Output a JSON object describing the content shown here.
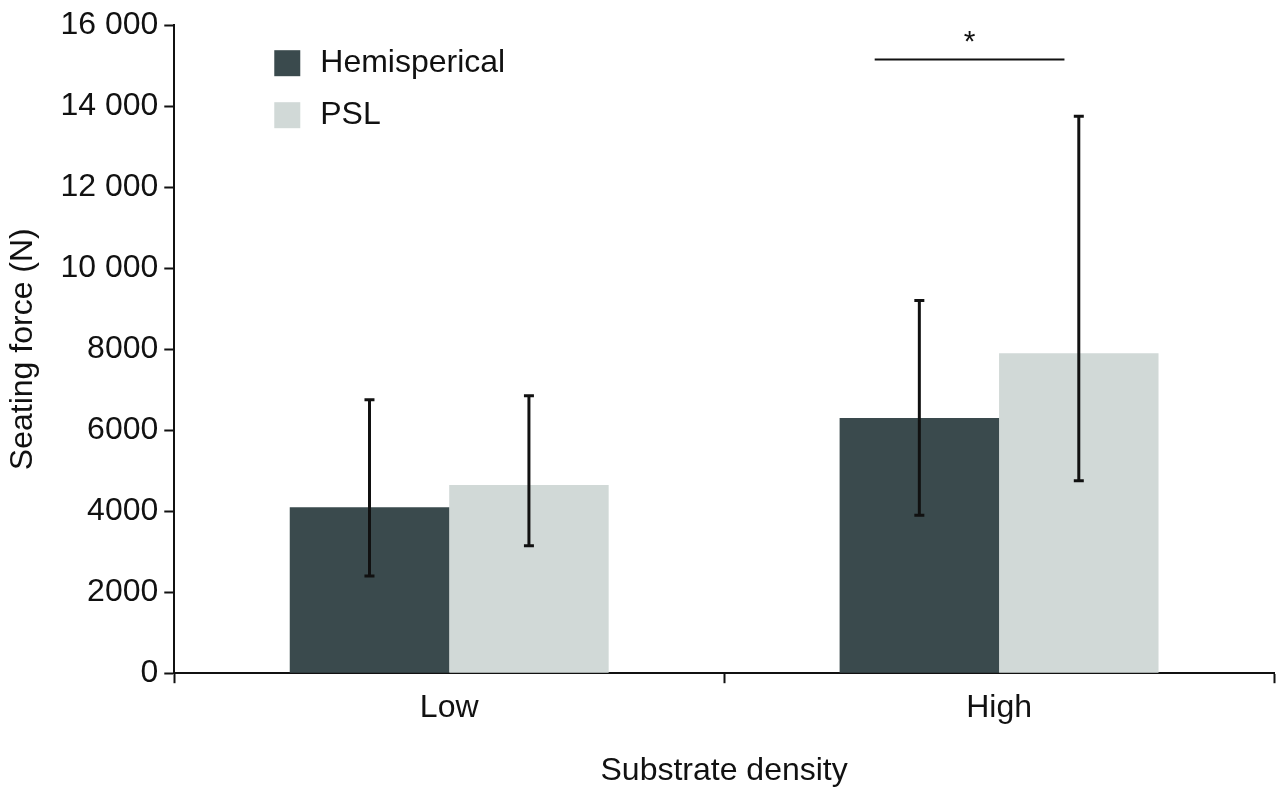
{
  "chart_data": {
    "type": "bar",
    "x_label": "Substrate density",
    "y_label": "Seating force (N)",
    "categories": [
      "Low",
      "High"
    ],
    "series": [
      {
        "name": "Hemisperical",
        "color": "#3a4a4d",
        "values": [
          4100,
          6300
        ],
        "error_range": [
          [
            2400,
            6750
          ],
          [
            3900,
            9200
          ]
        ]
      },
      {
        "name": "PSL",
        "color": "#d1d9d7",
        "values": [
          4650,
          7900
        ],
        "error_range": [
          [
            3150,
            6850
          ],
          [
            4750,
            13750
          ]
        ]
      }
    ],
    "ylim": [
      0,
      16000
    ],
    "yticks": [
      0,
      2000,
      4000,
      6000,
      8000,
      {
        "value": 10000,
        "label": "10 000"
      },
      {
        "value": 12000,
        "label": "12 000"
      },
      {
        "value": 14000,
        "label": "14 000"
      },
      {
        "value": 16000,
        "label": "16 000"
      }
    ],
    "grid": false,
    "legend": "upper left",
    "annotations": [
      {
        "text": "*",
        "category": "High"
      }
    ]
  }
}
